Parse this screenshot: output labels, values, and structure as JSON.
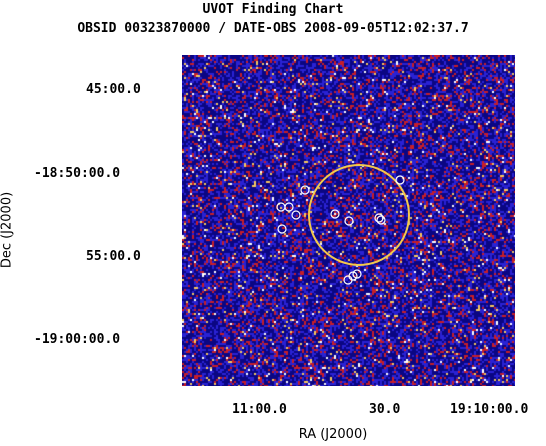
{
  "chart_data": {
    "type": "image",
    "title": "UVOT Finding Chart",
    "subtitle": "OBSID 00323870000 / DATE-OBS 2008-09-05T12:02:37.7",
    "xlabel": "RA (J2000)",
    "ylabel": "Dec (J2000)",
    "x_tick_labels": [
      "11:00.0",
      "30.0",
      "19:10:00.0"
    ],
    "y_tick_labels": [
      "45:00.0",
      "-18:50:00.0",
      "55:00.0",
      "-19:00:00.0"
    ],
    "colormap": [
      "#0b0683",
      "#2a22d4",
      "#c81e28",
      "#f7c95e",
      "#ffffff"
    ],
    "error_circle_color": "#f2c94c",
    "source_marker_color": "#ffffff",
    "sources_count": 13
  }
}
